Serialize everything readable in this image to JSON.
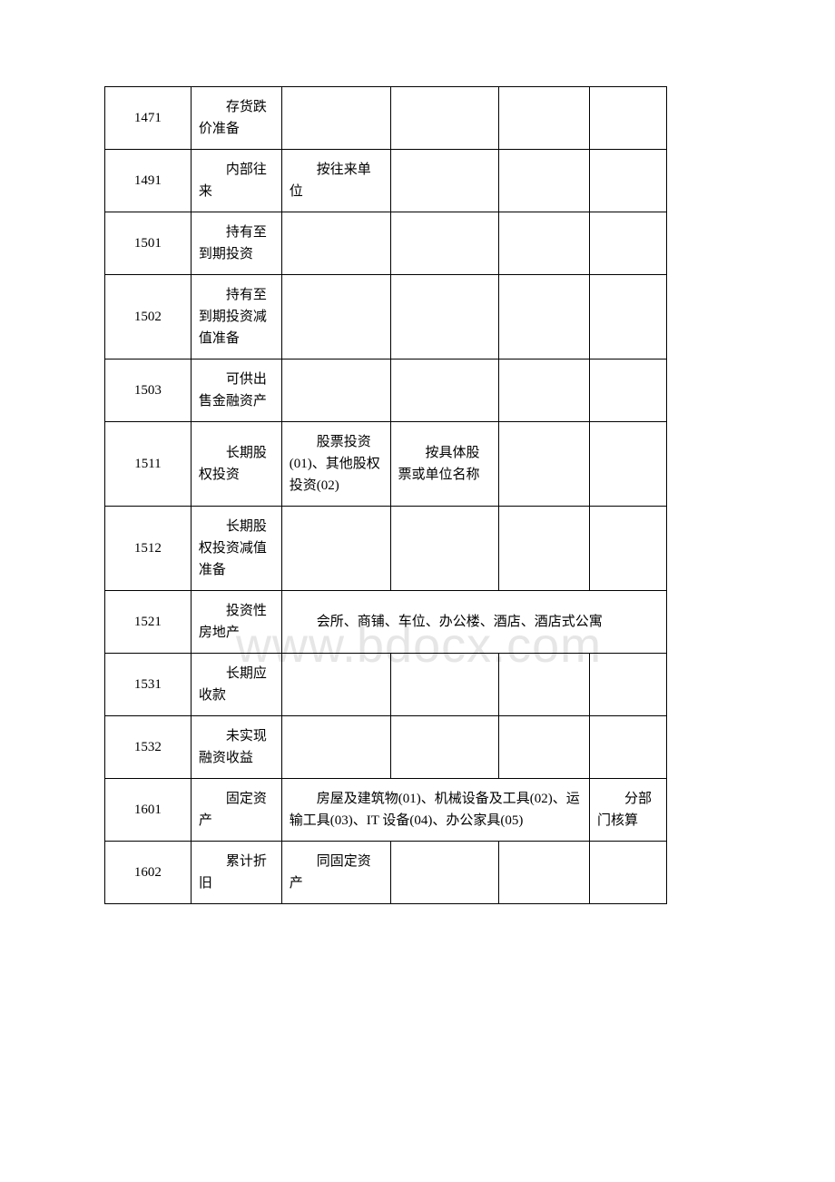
{
  "watermark": "www.bdocx.com",
  "rows": [
    {
      "code": "1471",
      "name": "存货跌价准备",
      "c3": "",
      "c4": "",
      "c5": "",
      "c6": ""
    },
    {
      "code": "1491",
      "name": "内部往来",
      "c3": "按往来单位",
      "c4": "",
      "c5": "",
      "c6": ""
    },
    {
      "code": "1501",
      "name": "持有至到期投资",
      "c3": "",
      "c4": "",
      "c5": "",
      "c6": ""
    },
    {
      "code": "1502",
      "name": "持有至到期投资减值准备",
      "c3": "",
      "c4": "",
      "c5": "",
      "c6": ""
    },
    {
      "code": "1503",
      "name": "可供出售金融资产",
      "c3": "",
      "c4": "",
      "c5": "",
      "c6": ""
    },
    {
      "code": "1511",
      "name": "长期股权投资",
      "c3": "股票投资(01)、其他股权投资(02)",
      "c4": "按具体股票或单位名称",
      "c5": "",
      "c6": ""
    },
    {
      "code": "1512",
      "name": "长期股权投资减值准备",
      "c3": "",
      "c4": "",
      "c5": "",
      "c6": ""
    },
    {
      "code": "1521",
      "name": "投资性房地产",
      "merged": "会所、商铺、车位、办公楼、酒店、酒店式公寓",
      "colspan": 4
    },
    {
      "code": "1531",
      "name": "长期应收款",
      "c3": "",
      "c4": "",
      "c5": "",
      "c6": ""
    },
    {
      "code": "1532",
      "name": "未实现融资收益",
      "c3": "",
      "c4": "",
      "c5": "",
      "c6": ""
    },
    {
      "code": "1601",
      "name": "固定资产",
      "merged": "房屋及建筑物(01)、机械设备及工具(02)、运输工具(03)、IT 设备(04)、办公家具(05)",
      "colspan": 3,
      "c6": "分部门核算"
    },
    {
      "code": "1602",
      "name": "累计折旧",
      "c3": "同固定资产",
      "c4": "",
      "c5": "",
      "c6": ""
    }
  ]
}
